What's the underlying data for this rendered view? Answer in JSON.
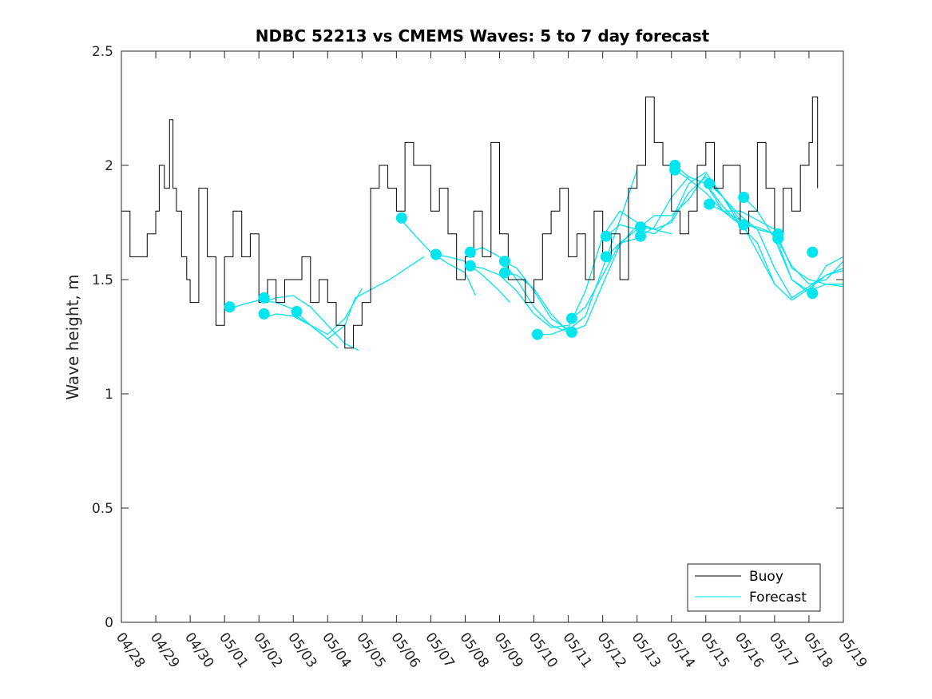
{
  "chart_data": {
    "type": "line",
    "title": "NDBC 52213 vs CMEMS Waves: 5 to 7 day forecast",
    "xlabel": "",
    "ylabel": "Wave height, m",
    "xlim": [
      "04/28",
      "05/19"
    ],
    "ylim": [
      0,
      2.5
    ],
    "x_ticks": [
      "04/28",
      "04/29",
      "04/30",
      "05/01",
      "05/02",
      "05/03",
      "05/04",
      "05/05",
      "05/06",
      "05/07",
      "05/08",
      "05/09",
      "05/10",
      "05/11",
      "05/12",
      "05/13",
      "05/14",
      "05/15",
      "05/16",
      "05/17",
      "05/18",
      "05/19"
    ],
    "y_ticks": [
      "0",
      "0.5",
      "1",
      "1.5",
      "2",
      "2.5"
    ],
    "grid": false,
    "legend": {
      "placement": "bottom-right",
      "entries": [
        "Buoy",
        "Forecast"
      ]
    },
    "colors": {
      "buoy": "#000000",
      "forecast": "#00e5ee",
      "axes": "#262626"
    },
    "series": [
      {
        "name": "Buoy",
        "x": [
          0,
          0.25,
          0.5,
          0.75,
          1,
          1.1,
          1.25,
          1.4,
          1.5,
          1.6,
          1.75,
          1.9,
          2,
          2.25,
          2.5,
          2.75,
          3,
          3.25,
          3.5,
          3.75,
          4,
          4.25,
          4.5,
          4.75,
          5,
          5.25,
          5.5,
          5.75,
          6,
          6.25,
          6.5,
          6.75,
          7,
          7.25,
          7.5,
          7.75,
          8,
          8.25,
          8.5,
          8.75,
          9,
          9.25,
          9.5,
          9.75,
          10,
          10.25,
          10.5,
          10.75,
          11,
          11.25,
          11.5,
          11.75,
          12,
          12.25,
          12.5,
          12.75,
          13,
          13.25,
          13.5,
          13.75,
          14,
          14.25,
          14.5,
          14.75,
          15,
          15.25,
          15.5,
          15.75,
          16,
          16.25,
          16.5,
          16.75,
          17,
          17.25,
          17.5,
          17.75,
          18,
          18.25,
          18.5,
          18.75,
          19,
          19.25,
          19.5,
          19.75,
          20,
          20.1,
          20.25
        ],
        "y": [
          1.8,
          1.6,
          1.6,
          1.7,
          1.8,
          2.0,
          1.9,
          2.2,
          1.9,
          1.8,
          1.6,
          1.5,
          1.4,
          1.9,
          1.6,
          1.3,
          1.6,
          1.8,
          1.6,
          1.7,
          1.4,
          1.5,
          1.4,
          1.5,
          1.5,
          1.6,
          1.4,
          1.5,
          1.4,
          1.3,
          1.2,
          1.3,
          1.4,
          1.9,
          2.0,
          1.9,
          1.8,
          2.1,
          2.0,
          2.0,
          1.8,
          1.9,
          1.7,
          1.5,
          1.6,
          1.8,
          1.6,
          2.1,
          1.7,
          1.5,
          1.5,
          1.4,
          1.5,
          1.7,
          1.8,
          1.9,
          1.6,
          1.7,
          1.5,
          1.8,
          1.6,
          1.7,
          1.5,
          1.9,
          2.0,
          2.3,
          2.1,
          2.0,
          1.8,
          1.7,
          1.8,
          2.0,
          2.1,
          1.9,
          2.0,
          2.0,
          1.7,
          1.8,
          2.1,
          1.9,
          1.7,
          1.9,
          1.8,
          2.0,
          2.1,
          2.3,
          1.9
        ]
      },
      {
        "name": "Forecast",
        "segments": [
          {
            "x": [
              3.1,
              3.5,
              4.0,
              4.5,
              5.0,
              5.5,
              6.0,
              6.3
            ],
            "y": [
              1.37,
              1.39,
              1.41,
              1.4,
              1.37,
              1.3,
              1.24,
              1.2
            ]
          },
          {
            "x": [
              4.1,
              4.5,
              5.0,
              5.5,
              6.0,
              6.5,
              7.0
            ],
            "y": [
              1.33,
              1.35,
              1.34,
              1.3,
              1.26,
              1.33,
              1.46
            ]
          },
          {
            "x": [
              4.1,
              4.5,
              5.0,
              5.5,
              6.0,
              6.5,
              6.9
            ],
            "y": [
              1.4,
              1.42,
              1.43,
              1.38,
              1.3,
              1.22,
              1.19
            ]
          },
          {
            "x": [
              5.1,
              5.5,
              6.0,
              6.5,
              6.8,
              7.3,
              7.8,
              8.3,
              8.8
            ],
            "y": [
              1.34,
              1.3,
              1.24,
              1.3,
              1.42,
              1.46,
              1.5,
              1.55,
              1.6
            ]
          },
          {
            "x": [
              8.1,
              8.5,
              9.0,
              9.5,
              10.0,
              10.3
            ],
            "y": [
              1.77,
              1.7,
              1.62,
              1.57,
              1.53,
              1.43
            ]
          },
          {
            "x": [
              9.1,
              9.5,
              10.0,
              10.5,
              11.0,
              11.3
            ],
            "y": [
              1.61,
              1.6,
              1.58,
              1.52,
              1.45,
              1.4
            ]
          },
          {
            "x": [
              10.1,
              10.5,
              11.0,
              11.5,
              12.0,
              12.5,
              13.0
            ],
            "y": [
              1.62,
              1.64,
              1.6,
              1.5,
              1.38,
              1.3,
              1.27
            ]
          },
          {
            "x": [
              10.1,
              10.5,
              11.0,
              11.5,
              12.0,
              12.5,
              13.0
            ],
            "y": [
              1.56,
              1.55,
              1.52,
              1.45,
              1.35,
              1.29,
              1.3
            ]
          },
          {
            "x": [
              11.1,
              11.5,
              12.0,
              12.5,
              13.0,
              13.5,
              14.0,
              14.5,
              15.0
            ],
            "y": [
              1.58,
              1.55,
              1.45,
              1.33,
              1.28,
              1.34,
              1.55,
              1.76,
              1.98
            ]
          },
          {
            "x": [
              11.1,
              11.5,
              12.0,
              12.5,
              13.0,
              13.5,
              14.0,
              14.5,
              14.9
            ],
            "y": [
              1.53,
              1.52,
              1.46,
              1.35,
              1.27,
              1.3,
              1.48,
              1.65,
              1.72
            ]
          },
          {
            "x": [
              12.1,
              12.5,
              13.0,
              13.5,
              14.0,
              14.5,
              15.0,
              15.5,
              16.0
            ],
            "y": [
              1.26,
              1.26,
              1.29,
              1.45,
              1.69,
              1.8,
              1.75,
              1.72,
              1.7
            ]
          },
          {
            "x": [
              13.1,
              13.5,
              14.0,
              14.5,
              15.0,
              15.5,
              16.0,
              16.5,
              17.0
            ],
            "y": [
              1.33,
              1.38,
              1.52,
              1.66,
              1.72,
              1.78,
              1.78,
              1.85,
              1.96
            ]
          },
          {
            "x": [
              14.1,
              14.5,
              15.0,
              15.5,
              16.0,
              16.5,
              17.0,
              17.5,
              18.0
            ],
            "y": [
              1.69,
              1.74,
              1.72,
              1.7,
              1.76,
              1.92,
              1.97,
              1.86,
              1.74
            ]
          },
          {
            "x": [
              14.1,
              14.5,
              15.0,
              15.5,
              16.0,
              16.5,
              17.0,
              17.5,
              18.0
            ],
            "y": [
              1.6,
              1.66,
              1.68,
              1.73,
              1.86,
              1.95,
              1.92,
              1.8,
              1.74
            ]
          },
          {
            "x": [
              15.1,
              15.5,
              16.0,
              16.5,
              17.0,
              17.5,
              18.0,
              18.5,
              19.0
            ],
            "y": [
              1.73,
              1.72,
              1.75,
              1.88,
              1.95,
              1.86,
              1.76,
              1.62,
              1.48
            ]
          },
          {
            "x": [
              16.1,
              16.5,
              17.0,
              17.5,
              18.0,
              18.5,
              19.0,
              19.5,
              20.0,
              20.5,
              21.0
            ],
            "y": [
              2.0,
              1.95,
              1.92,
              1.82,
              1.74,
              1.66,
              1.48,
              1.41,
              1.46,
              1.52,
              1.55
            ]
          },
          {
            "x": [
              16.1,
              16.5,
              17.0,
              17.5,
              18.0,
              18.5,
              19.0,
              19.5,
              20.0,
              20.5,
              21.0
            ],
            "y": [
              1.98,
              1.94,
              1.88,
              1.8,
              1.76,
              1.72,
              1.55,
              1.42,
              1.47,
              1.52,
              1.54
            ]
          },
          {
            "x": [
              17.1,
              17.5,
              18.0,
              18.5,
              19.0,
              19.5,
              20.0,
              20.5,
              21.0
            ],
            "y": [
              1.92,
              1.86,
              1.78,
              1.72,
              1.7,
              1.5,
              1.45,
              1.48,
              1.48
            ]
          },
          {
            "x": [
              17.1,
              17.5,
              18.0,
              18.5,
              19.0,
              19.5,
              20.0,
              20.5,
              21.0
            ],
            "y": [
              1.83,
              1.8,
              1.8,
              1.76,
              1.72,
              1.55,
              1.5,
              1.48,
              1.47
            ]
          },
          {
            "x": [
              18.1,
              18.5,
              19.0,
              19.5,
              20.0,
              20.5,
              21.0
            ],
            "y": [
              1.74,
              1.73,
              1.7,
              1.56,
              1.48,
              1.5,
              1.58
            ]
          },
          {
            "x": [
              18.1,
              18.5,
              19.0,
              19.5,
              20.0,
              20.5,
              21.0
            ],
            "y": [
              1.86,
              1.8,
              1.68,
              1.5,
              1.44,
              1.56,
              1.6
            ]
          }
        ],
        "markers": {
          "x": [
            3.15,
            4.15,
            4.15,
            5.1,
            8.15,
            9.15,
            10.15,
            10.15,
            11.15,
            11.15,
            12.1,
            13.1,
            13.1,
            14.1,
            14.1,
            15.1,
            15.1,
            16.1,
            16.1,
            17.1,
            17.1,
            18.1,
            18.1,
            19.1,
            19.1,
            20.1,
            20.1
          ],
          "y": [
            1.38,
            1.42,
            1.35,
            1.36,
            1.77,
            1.61,
            1.62,
            1.56,
            1.58,
            1.53,
            1.26,
            1.33,
            1.27,
            1.69,
            1.6,
            1.73,
            1.69,
            2.0,
            1.98,
            1.92,
            1.83,
            1.86,
            1.74,
            1.7,
            1.68,
            1.62,
            1.44
          ]
        }
      }
    ]
  }
}
